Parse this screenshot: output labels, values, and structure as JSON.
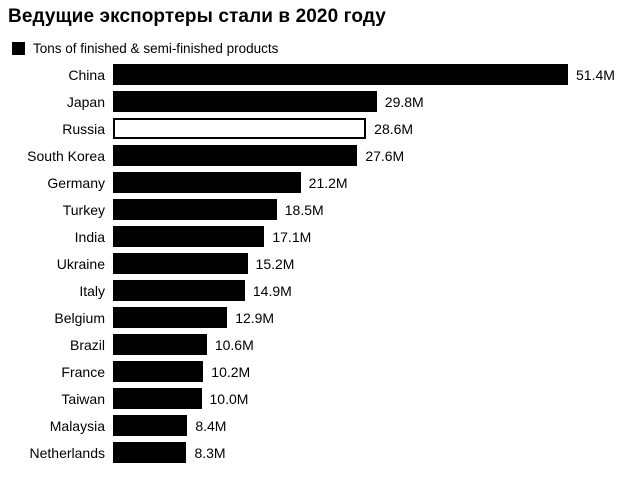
{
  "title": "Ведущие экспортеры стали в 2020 году",
  "legend": {
    "label": "Tons of finished & semi-finished products",
    "swatch": "black-square-swatch"
  },
  "colors": {
    "bar": "#000000",
    "highlight_fill": "#ffffff",
    "highlight_border": "#000000",
    "text": "#000000",
    "background": "#ffffff"
  },
  "chart_data": {
    "type": "bar",
    "orientation": "horizontal",
    "title": "Ведущие экспортеры стали в 2020 году",
    "legend_entries": [
      "Tons of finished & semi-finished products"
    ],
    "legend_position": "top-left",
    "grid": false,
    "xlim": [
      0,
      51.4
    ],
    "categories": [
      "China",
      "Japan",
      "Russia",
      "South Korea",
      "Germany",
      "Turkey",
      "India",
      "Ukraine",
      "Italy",
      "Belgium",
      "Brazil",
      "France",
      "Taiwan",
      "Malaysia",
      "Netherlands"
    ],
    "values": [
      51.4,
      29.8,
      28.6,
      27.6,
      21.2,
      18.5,
      17.1,
      15.2,
      14.9,
      12.9,
      10.6,
      10.2,
      10.0,
      8.4,
      8.3
    ],
    "value_labels": [
      "51.4M",
      "29.8M",
      "28.6M",
      "27.6M",
      "21.2M",
      "18.5M",
      "17.1M",
      "15.2M",
      "14.9M",
      "12.9M",
      "10.6M",
      "10.2M",
      "10.0M",
      "8.4M",
      "8.3M"
    ],
    "highlighted_category": "Russia",
    "highlight_index": 2,
    "unit": "M tons"
  }
}
